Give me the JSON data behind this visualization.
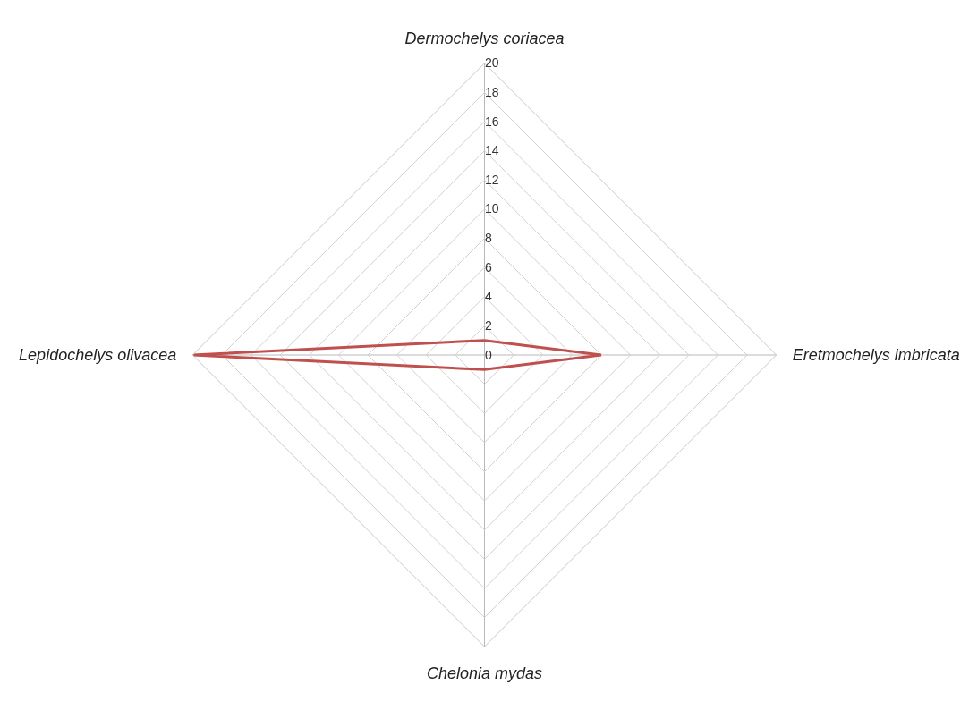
{
  "chart_data": {
    "type": "radar",
    "categories": [
      "Dermochelys coriacea",
      "Eretmochelys imbricata",
      "Chelonia mydas",
      "Lepidochelys olivacea"
    ],
    "series": [
      {
        "color": "#c0504d",
        "values": [
          1,
          8,
          1,
          20
        ]
      }
    ],
    "ylim": [
      0,
      20
    ],
    "yticks": [
      0,
      2,
      4,
      6,
      8,
      10,
      12,
      14,
      16,
      18,
      20
    ],
    "grid": true,
    "marker": "none",
    "line_style": "solid"
  }
}
